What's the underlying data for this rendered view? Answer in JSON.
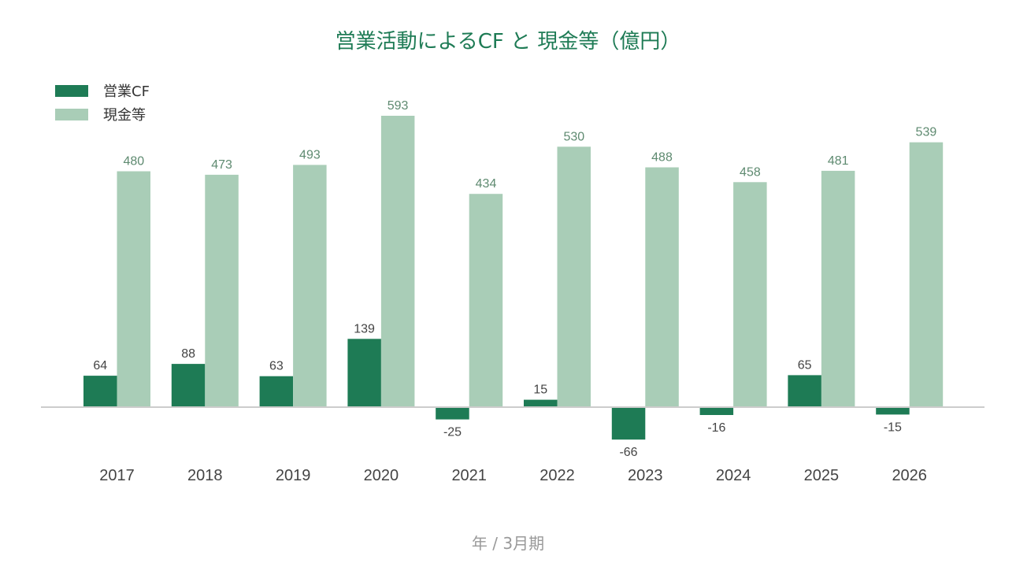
{
  "chart_data": {
    "type": "bar",
    "title": "営業活動によるCF と 現金等（億円）",
    "xlabel": "年 / 3月期",
    "ylabel": "",
    "categories": [
      "2017",
      "2018",
      "2019",
      "2020",
      "2021",
      "2022",
      "2023",
      "2024",
      "2025",
      "2026"
    ],
    "series": [
      {
        "name": "営業CF",
        "color": "#1e7b55",
        "label_color": "#444444",
        "values": [
          64,
          88,
          63,
          139,
          -25,
          15,
          -66,
          -16,
          65,
          -15
        ]
      },
      {
        "name": "現金等",
        "color": "#a9cdb7",
        "label_color": "#5e8a70",
        "values": [
          480,
          473,
          493,
          593,
          434,
          530,
          488,
          458,
          481,
          539
        ]
      }
    ],
    "ylim": [
      -66,
      593
    ],
    "grid": false,
    "legend_position": "top-left",
    "baseline_color": "#cccccc"
  }
}
